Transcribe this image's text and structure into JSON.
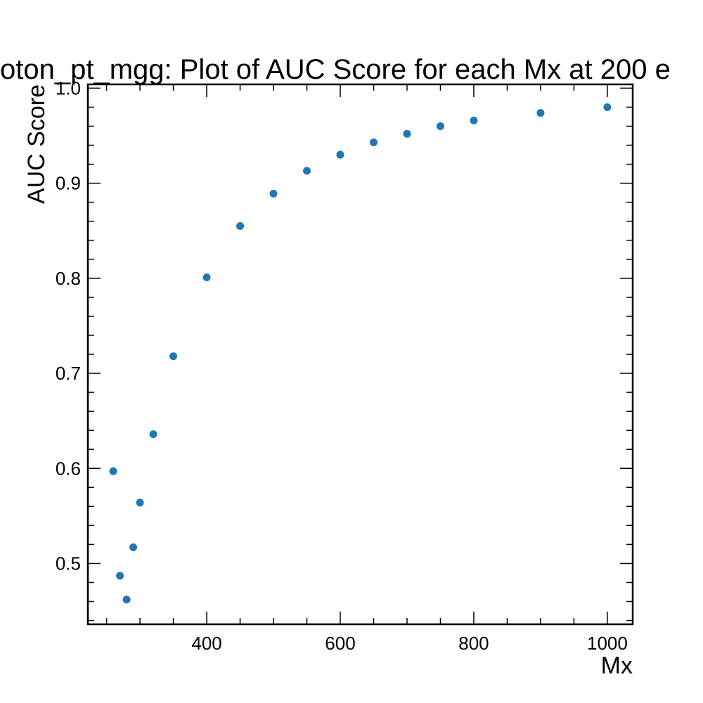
{
  "chart_data": {
    "type": "scatter",
    "title": "oton_pt_mgg: Plot of AUC Score for each Mx at 200 e",
    "xlabel": "Mx",
    "ylabel": "AUC Score",
    "xlim": [
      222,
      1038
    ],
    "ylim": [
      0.436,
      1.004
    ],
    "xticks": [
      400,
      600,
      800,
      1000
    ],
    "xtick_labels": [
      "400",
      "600",
      "800",
      "1000"
    ],
    "yticks": [
      0.5,
      0.6,
      0.7,
      0.8,
      0.9,
      1.0
    ],
    "ytick_labels": [
      "0.5",
      "0.6",
      "0.7",
      "0.8",
      "0.9",
      "1.0"
    ],
    "x_minor_step": 50,
    "y_minor_step": 0.02,
    "grid": false,
    "legend": "none",
    "marker_color": "#1f77b4",
    "series": [
      {
        "x": [
          260,
          270,
          280,
          290,
          300,
          320,
          350,
          400,
          450,
          500,
          550,
          600,
          650,
          700,
          750,
          800,
          900,
          1000
        ],
        "y": [
          0.597,
          0.487,
          0.462,
          0.517,
          0.564,
          0.636,
          0.718,
          0.801,
          0.855,
          0.889,
          0.913,
          0.93,
          0.943,
          0.952,
          0.96,
          0.966,
          0.974,
          0.98
        ]
      }
    ]
  }
}
